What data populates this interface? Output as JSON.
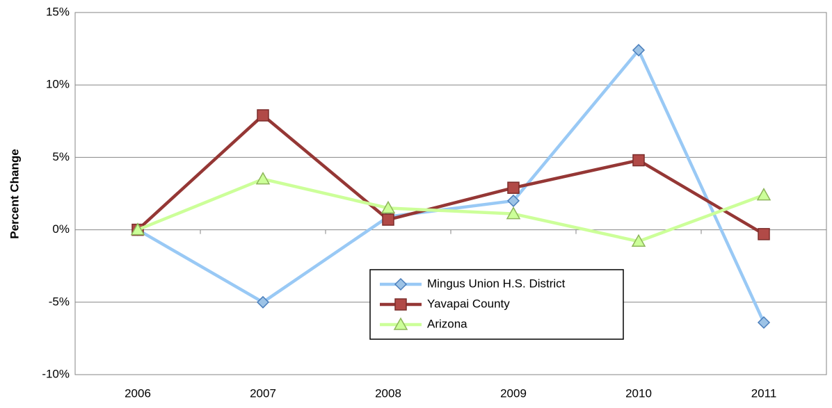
{
  "chart_data": {
    "type": "line",
    "y_label": "Percent Change",
    "categories": [
      "2006",
      "2007",
      "2008",
      "2009",
      "2010",
      "2011"
    ],
    "series": [
      {
        "name": "Mingus Union H.S. District",
        "color": "#99c9f5",
        "marker": "diamond",
        "marker_fill": "#9dc3e6",
        "marker_stroke": "#4a7ebb",
        "values": [
          0,
          -5,
          0.9,
          2.0,
          12.4,
          -6.4
        ]
      },
      {
        "name": "Yavapai County",
        "color": "#953735",
        "marker": "square",
        "marker_fill": "#b14a47",
        "marker_stroke": "#7a2c2a",
        "values": [
          0,
          7.9,
          0.7,
          2.9,
          4.8,
          -0.3
        ]
      },
      {
        "name": "Arizona",
        "color": "#ccff99",
        "marker": "triangle",
        "marker_fill": "#ccff99",
        "marker_stroke": "#8db55a",
        "values": [
          0,
          3.5,
          1.5,
          1.1,
          -0.8,
          2.4
        ]
      }
    ],
    "ylim": [
      -10,
      15
    ],
    "yticks": [
      {
        "value": -10,
        "label": "-10%"
      },
      {
        "value": -5,
        "label": "-5%"
      },
      {
        "value": 0,
        "label": "0%"
      },
      {
        "value": 5,
        "label": "5%"
      },
      {
        "value": 10,
        "label": "10%"
      },
      {
        "value": 15,
        "label": "15%"
      }
    ],
    "grid": true,
    "legend": "center"
  }
}
